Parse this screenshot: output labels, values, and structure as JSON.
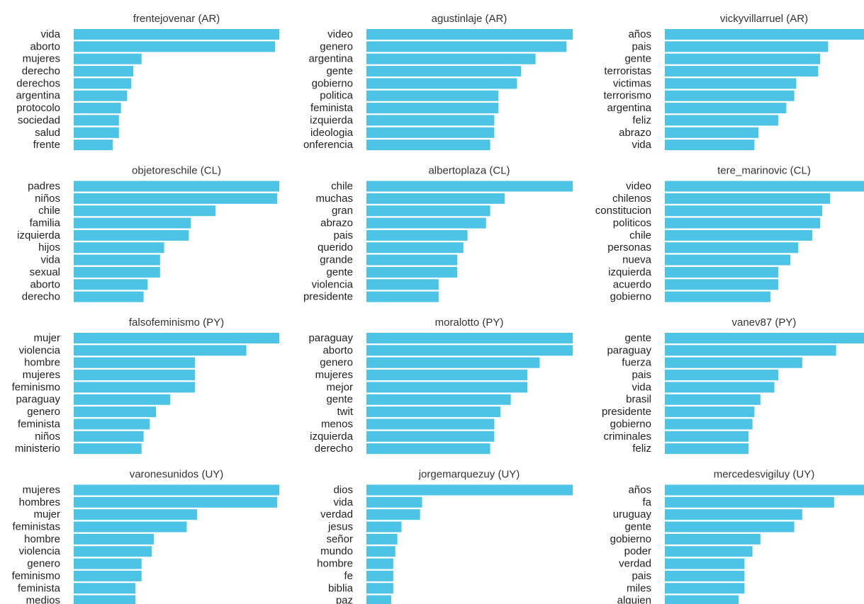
{
  "chart_data": [
    {
      "type": "bar",
      "orientation": "horizontal",
      "title": "frentejovenar (AR)",
      "color": "#4dc3e6",
      "xlim": [
        0,
        100
      ],
      "categories": [
        "vida",
        "aborto",
        "mujeres",
        "derecho",
        "derechos",
        "argentina",
        "protocolo",
        "sociedad",
        "salud",
        "frente"
      ],
      "values": [
        100,
        98,
        33,
        29,
        28,
        26,
        23,
        22,
        22,
        19
      ]
    },
    {
      "type": "bar",
      "orientation": "horizontal",
      "title": "agustinlaje (AR)",
      "color": "#4dc3e6",
      "xlim": [
        0,
        100
      ],
      "categories": [
        "video",
        "genero",
        "argentina",
        "gente",
        "gobierno",
        "politica",
        "feminista",
        "izquierda",
        "ideologia",
        "conferencia"
      ],
      "values": [
        100,
        97,
        82,
        75,
        73,
        64,
        64,
        62,
        62,
        60
      ]
    },
    {
      "type": "bar",
      "orientation": "horizontal",
      "title": "vickyvillarruel (AR)",
      "color": "#4dc3e6",
      "xlim": [
        0,
        100
      ],
      "categories": [
        "años",
        "pais",
        "gente",
        "terroristas",
        "victimas",
        "terrorismo",
        "argentina",
        "feliz",
        "abrazo",
        "vida"
      ],
      "values": [
        100,
        82,
        78,
        77,
        66,
        65,
        61,
        57,
        47,
        45
      ]
    },
    {
      "type": "bar",
      "orientation": "horizontal",
      "title": "objetoreschile (CL)",
      "color": "#4dc3e6",
      "xlim": [
        0,
        100
      ],
      "categories": [
        "padres",
        "niños",
        "chile",
        "familia",
        "izquierda",
        "hijos",
        "vida",
        "sexual",
        "aborto",
        "derecho"
      ],
      "values": [
        100,
        99,
        69,
        57,
        56,
        44,
        42,
        42,
        36,
        34
      ]
    },
    {
      "type": "bar",
      "orientation": "horizontal",
      "title": "albertoplaza (CL)",
      "color": "#4dc3e6",
      "xlim": [
        0,
        100
      ],
      "categories": [
        "chile",
        "muchas",
        "gran",
        "abrazo",
        "pais",
        "querido",
        "grande",
        "gente",
        "violencia",
        "presidente"
      ],
      "values": [
        100,
        67,
        60,
        58,
        49,
        47,
        44,
        44,
        35,
        35
      ]
    },
    {
      "type": "bar",
      "orientation": "horizontal",
      "title": "tere_marinovic (CL)",
      "color": "#4dc3e6",
      "xlim": [
        0,
        100
      ],
      "categories": [
        "video",
        "chilenos",
        "constitucion",
        "politicos",
        "chile",
        "personas",
        "nueva",
        "izquierda",
        "acuerdo",
        "gobierno"
      ],
      "values": [
        100,
        83,
        79,
        78,
        74,
        67,
        63,
        57,
        57,
        53
      ]
    },
    {
      "type": "bar",
      "orientation": "horizontal",
      "title": "falsofeminismo (PY)",
      "color": "#4dc3e6",
      "xlim": [
        0,
        100
      ],
      "categories": [
        "mujer",
        "violencia",
        "hombre",
        "mujeres",
        "feminismo",
        "paraguay",
        "genero",
        "feminista",
        "niños",
        "ministerio"
      ],
      "values": [
        100,
        84,
        59,
        59,
        59,
        47,
        40,
        37,
        34,
        33
      ]
    },
    {
      "type": "bar",
      "orientation": "horizontal",
      "title": "moralotto (PY)",
      "color": "#4dc3e6",
      "xlim": [
        0,
        100
      ],
      "categories": [
        "paraguay",
        "aborto",
        "genero",
        "mujeres",
        "mejor",
        "gente",
        "twit",
        "menos",
        "izquierda",
        "derecho"
      ],
      "values": [
        100,
        100,
        84,
        78,
        78,
        70,
        65,
        62,
        62,
        60
      ]
    },
    {
      "type": "bar",
      "orientation": "horizontal",
      "title": "vanev87 (PY)",
      "color": "#4dc3e6",
      "xlim": [
        0,
        100
      ],
      "categories": [
        "gente",
        "paraguay",
        "fuerza",
        "pais",
        "vida",
        "brasil",
        "presidente",
        "gobierno",
        "criminales",
        "feliz"
      ],
      "values": [
        100,
        86,
        69,
        57,
        55,
        48,
        45,
        44,
        42,
        42
      ]
    },
    {
      "type": "bar",
      "orientation": "horizontal",
      "title": "varonesunidos (UY)",
      "color": "#4dc3e6",
      "xlim": [
        0,
        100
      ],
      "categories": [
        "mujeres",
        "hombres",
        "mujer",
        "feministas",
        "hombre",
        "violencia",
        "genero",
        "feminismo",
        "feminista",
        "medios"
      ],
      "values": [
        100,
        99,
        60,
        55,
        39,
        38,
        33,
        33,
        30,
        30
      ]
    },
    {
      "type": "bar",
      "orientation": "horizontal",
      "title": "jorgemarquezuy (UY)",
      "color": "#4dc3e6",
      "xlim": [
        0,
        100
      ],
      "categories": [
        "dios",
        "vida",
        "verdad",
        "jesus",
        "señor",
        "mundo",
        "hombre",
        "fe",
        "biblia",
        "paz"
      ],
      "values": [
        100,
        27,
        26,
        17,
        15,
        14,
        13,
        13,
        13,
        12
      ]
    },
    {
      "type": "bar",
      "orientation": "horizontal",
      "title": "mercedesvigiluy (UY)",
      "color": "#4dc3e6",
      "xlim": [
        0,
        100
      ],
      "categories": [
        "años",
        "fa",
        "uruguay",
        "gente",
        "gobierno",
        "poder",
        "verdad",
        "pais",
        "miles",
        "alguien"
      ],
      "values": [
        100,
        85,
        69,
        65,
        48,
        44,
        40,
        40,
        40,
        37
      ]
    }
  ]
}
